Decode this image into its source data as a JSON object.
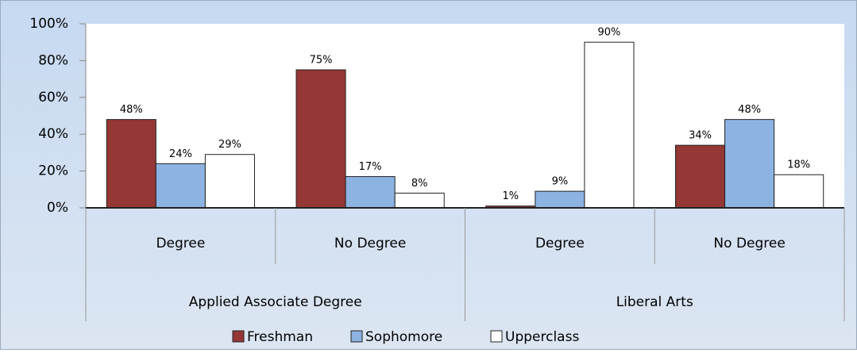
{
  "chart_data": {
    "type": "bar",
    "categories": [
      "Degree",
      "No Degree",
      "Degree",
      "No Degree"
    ],
    "category_groups": [
      "Applied Associate Degree",
      "Liberal Arts"
    ],
    "series": [
      {
        "name": "Freshman",
        "color": "#953735",
        "values": [
          48,
          75,
          1,
          34
        ],
        "value_labels": [
          "48%",
          "75%",
          "1%",
          "34%"
        ]
      },
      {
        "name": "Sophomore",
        "color": "#8db3e2",
        "values": [
          24,
          17,
          9,
          48
        ],
        "value_labels": [
          "24%",
          "17%",
          "9%",
          "48%"
        ]
      },
      {
        "name": "Upperclass",
        "color": "#ffffff",
        "values": [
          29,
          8,
          90,
          18
        ],
        "value_labels": [
          "29%",
          "8%",
          "90%",
          "18%"
        ]
      }
    ],
    "ylim": [
      0,
      100
    ],
    "yticks": [
      {
        "value": 0,
        "label": "0%"
      },
      {
        "value": 20,
        "label": "20%"
      },
      {
        "value": 40,
        "label": "40%"
      },
      {
        "value": 60,
        "label": "60%"
      },
      {
        "value": 80,
        "label": "80%"
      },
      {
        "value": 100,
        "label": "100%"
      }
    ],
    "legend": "bottom"
  }
}
